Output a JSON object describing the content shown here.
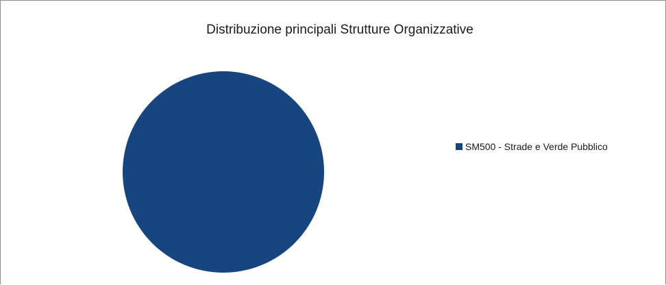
{
  "chart_data": {
    "type": "pie",
    "title": "Distribuzione principali Strutture Organizzative",
    "categories": [
      "SM500 - Strade e Verde Pubblico"
    ],
    "values": [
      100
    ],
    "colors": [
      "#17457f"
    ],
    "legend_position": "right"
  }
}
